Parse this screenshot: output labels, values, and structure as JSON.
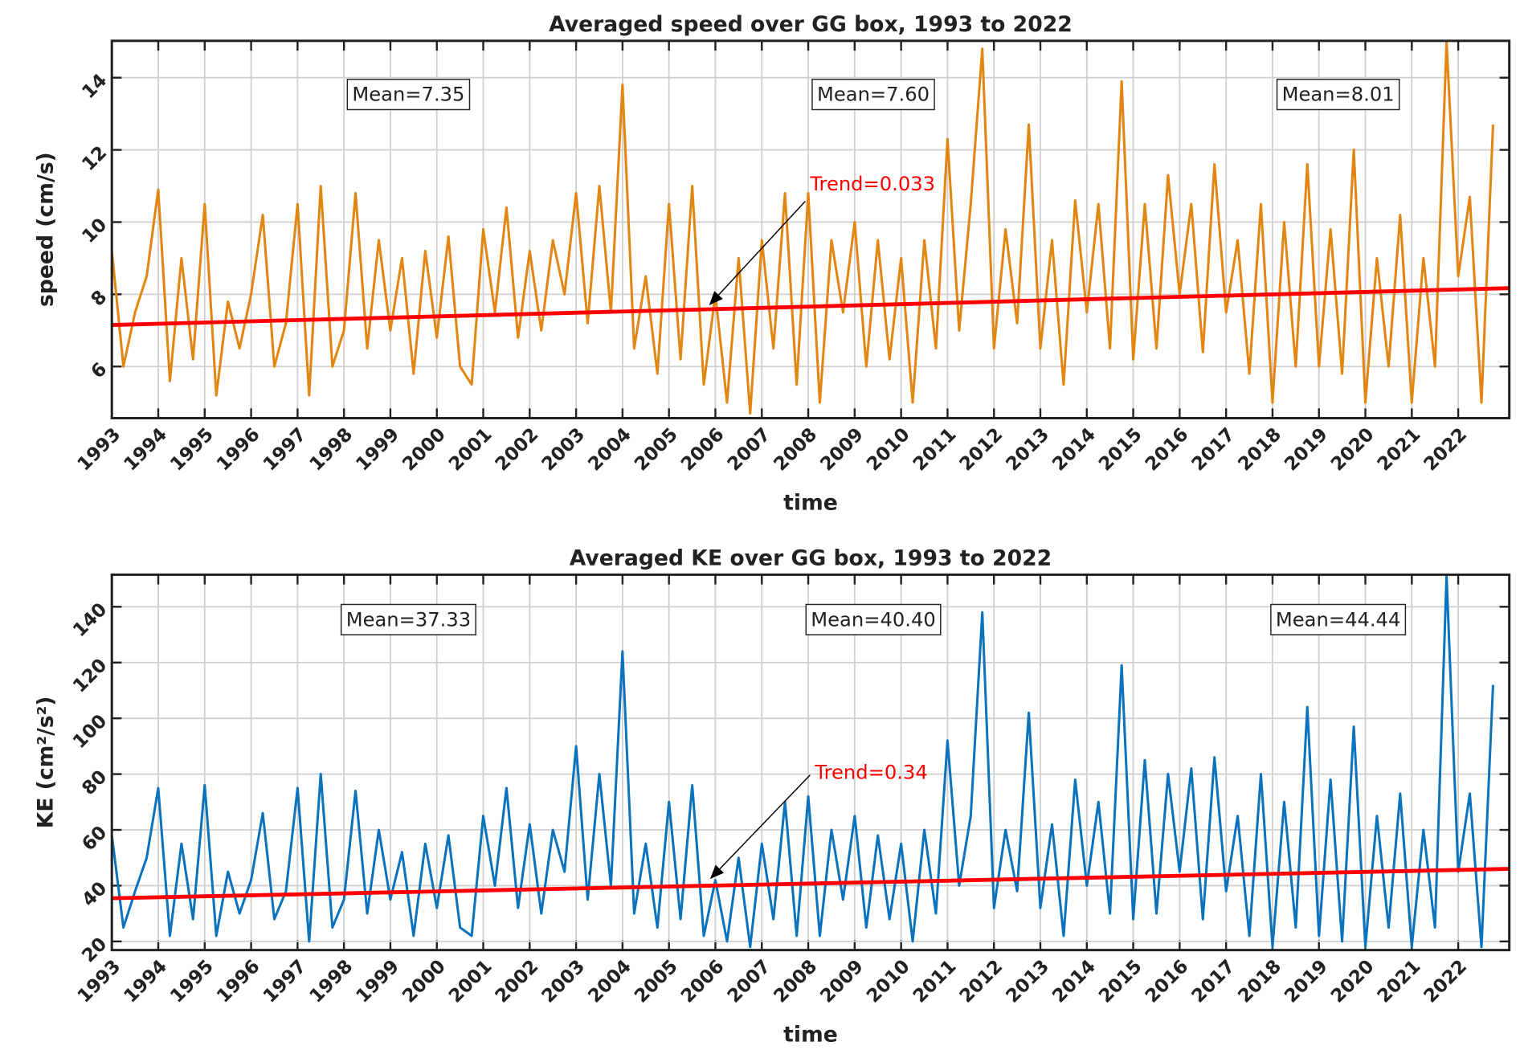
{
  "chart_data": [
    {
      "type": "line",
      "title": "Averaged speed over GG box, 1993 to 2022",
      "xlabel": "time",
      "ylabel": "speed (cm/s)",
      "x": [
        1993,
        1993.25,
        1993.5,
        1993.75,
        1994,
        1994.25,
        1994.5,
        1994.75,
        1995,
        1995.25,
        1995.5,
        1995.75,
        1996,
        1996.25,
        1996.5,
        1996.75,
        1997,
        1997.25,
        1997.5,
        1997.75,
        1998,
        1998.25,
        1998.5,
        1998.75,
        1999,
        1999.25,
        1999.5,
        1999.75,
        2000,
        2000.25,
        2000.5,
        2000.75,
        2001,
        2001.25,
        2001.5,
        2001.75,
        2002,
        2002.25,
        2002.5,
        2002.75,
        2003,
        2003.25,
        2003.5,
        2003.75,
        2004,
        2004.25,
        2004.5,
        2004.75,
        2005,
        2005.25,
        2005.5,
        2005.75,
        2006,
        2006.25,
        2006.5,
        2006.75,
        2007,
        2007.25,
        2007.5,
        2007.75,
        2008,
        2008.25,
        2008.5,
        2008.75,
        2009,
        2009.25,
        2009.5,
        2009.75,
        2010,
        2010.25,
        2010.5,
        2010.75,
        2011,
        2011.25,
        2011.5,
        2011.75,
        2012,
        2012.25,
        2012.5,
        2012.75,
        2013,
        2013.25,
        2013.5,
        2013.75,
        2014,
        2014.25,
        2014.5,
        2014.75,
        2015,
        2015.25,
        2015.5,
        2015.75,
        2016,
        2016.25,
        2016.5,
        2016.75,
        2017,
        2017.25,
        2017.5,
        2017.75,
        2018,
        2018.25,
        2018.5,
        2018.75,
        2019,
        2019.25,
        2019.5,
        2019.75,
        2020,
        2020.25,
        2020.5,
        2020.75,
        2021,
        2021.25,
        2021.5,
        2021.75,
        2022,
        2022.25,
        2022.5,
        2022.75
      ],
      "values": [
        9.2,
        6.0,
        7.5,
        8.5,
        10.9,
        5.6,
        9.0,
        6.2,
        10.5,
        5.2,
        7.8,
        6.5,
        8.0,
        10.2,
        6.0,
        7.2,
        10.5,
        5.2,
        11.0,
        6.0,
        7.0,
        10.8,
        6.5,
        9.5,
        7.0,
        9.0,
        5.8,
        9.2,
        6.8,
        9.6,
        6.0,
        5.5,
        9.8,
        7.5,
        10.4,
        6.8,
        9.2,
        7.0,
        9.5,
        8.0,
        10.8,
        7.2,
        11.0,
        7.5,
        13.8,
        6.5,
        8.5,
        5.8,
        10.5,
        6.2,
        11.0,
        5.5,
        8.0,
        5.0,
        9.0,
        4.7,
        9.5,
        6.5,
        10.8,
        5.5,
        10.8,
        5.0,
        9.5,
        7.5,
        10.0,
        6.0,
        9.5,
        6.2,
        9.0,
        5.0,
        9.5,
        6.5,
        12.3,
        7.0,
        10.5,
        14.8,
        6.5,
        9.8,
        7.2,
        12.7,
        6.5,
        9.5,
        5.5,
        10.6,
        7.5,
        10.5,
        6.5,
        13.9,
        6.2,
        10.5,
        6.5,
        11.3,
        8.0,
        10.5,
        6.4,
        11.6,
        7.5,
        9.5,
        5.8,
        10.5,
        5.0,
        10.0,
        6.0,
        11.6,
        6.0,
        9.8,
        5.8,
        12.0,
        5.0,
        9.0,
        6.0,
        10.2,
        5.0,
        9.0,
        6.0,
        15.0,
        8.5,
        10.7,
        5.0,
        12.7
      ],
      "color": "#e38511",
      "trend": {
        "x": [
          1993,
          2023.1
        ],
        "values": [
          7.15,
          8.17
        ],
        "color": "#ff0000"
      },
      "annotations": [
        "Mean=7.35",
        "Mean=7.60",
        "Mean=8.01",
        "Trend=0.033"
      ],
      "xlim": [
        1993,
        2023.1
      ],
      "ylim": [
        4.57,
        15.02
      ],
      "xticks": [
        1993,
        1994,
        1995,
        1996,
        1997,
        1998,
        1999,
        2000,
        2001,
        2002,
        2003,
        2004,
        2005,
        2006,
        2007,
        2008,
        2009,
        2010,
        2011,
        2012,
        2013,
        2014,
        2015,
        2016,
        2017,
        2018,
        2019,
        2020,
        2021,
        2022
      ],
      "yticks": [
        6,
        8,
        10,
        12,
        14
      ],
      "grid": true
    },
    {
      "type": "line",
      "title": "Averaged KE over GG box, 1993 to 2022",
      "xlabel": "time",
      "ylabel": "KE (cm²/s²)",
      "x": [
        1993,
        1993.25,
        1993.5,
        1993.75,
        1994,
        1994.25,
        1994.5,
        1994.75,
        1995,
        1995.25,
        1995.5,
        1995.75,
        1996,
        1996.25,
        1996.5,
        1996.75,
        1997,
        1997.25,
        1997.5,
        1997.75,
        1998,
        1998.25,
        1998.5,
        1998.75,
        1999,
        1999.25,
        1999.5,
        1999.75,
        2000,
        2000.25,
        2000.5,
        2000.75,
        2001,
        2001.25,
        2001.5,
        2001.75,
        2002,
        2002.25,
        2002.5,
        2002.75,
        2003,
        2003.25,
        2003.5,
        2003.75,
        2004,
        2004.25,
        2004.5,
        2004.75,
        2005,
        2005.25,
        2005.5,
        2005.75,
        2006,
        2006.25,
        2006.5,
        2006.75,
        2007,
        2007.25,
        2007.5,
        2007.75,
        2008,
        2008.25,
        2008.5,
        2008.75,
        2009,
        2009.25,
        2009.5,
        2009.75,
        2010,
        2010.25,
        2010.5,
        2010.75,
        2011,
        2011.25,
        2011.5,
        2011.75,
        2012,
        2012.25,
        2012.5,
        2012.75,
        2013,
        2013.25,
        2013.5,
        2013.75,
        2014,
        2014.25,
        2014.5,
        2014.75,
        2015,
        2015.25,
        2015.5,
        2015.75,
        2016,
        2016.25,
        2016.5,
        2016.75,
        2017,
        2017.25,
        2017.5,
        2017.75,
        2018,
        2018.25,
        2018.5,
        2018.75,
        2019,
        2019.25,
        2019.5,
        2019.75,
        2020,
        2020.25,
        2020.5,
        2020.75,
        2021,
        2021.25,
        2021.5,
        2021.75,
        2022,
        2022.25,
        2022.5,
        2022.75
      ],
      "values": [
        58,
        25,
        38,
        50,
        75,
        22,
        55,
        28,
        76,
        22,
        45,
        30,
        42,
        66,
        28,
        38,
        75,
        20,
        80,
        25,
        35,
        74,
        30,
        60,
        35,
        52,
        22,
        55,
        32,
        58,
        25,
        22,
        65,
        40,
        75,
        32,
        62,
        30,
        60,
        45,
        90,
        35,
        80,
        40,
        124,
        30,
        55,
        25,
        70,
        28,
        76,
        22,
        42,
        20,
        50,
        18,
        55,
        28,
        70,
        22,
        72,
        22,
        60,
        35,
        65,
        25,
        58,
        28,
        55,
        20,
        60,
        30,
        92,
        40,
        65,
        138,
        32,
        60,
        38,
        102,
        32,
        62,
        22,
        78,
        40,
        70,
        30,
        119,
        28,
        85,
        30,
        80,
        45,
        82,
        28,
        86,
        38,
        65,
        22,
        80,
        18,
        70,
        25,
        104,
        22,
        78,
        20,
        97,
        18,
        65,
        25,
        73,
        18,
        60,
        25,
        151,
        45,
        73,
        18,
        112
      ],
      "color": "#0b72bd",
      "trend": {
        "x": [
          1993,
          2023.1
        ],
        "values": [
          35.5,
          46
        ],
        "color": "#ff0000"
      },
      "annotations": [
        "Mean=37.33",
        "Mean=40.40",
        "Mean=44.44",
        "Trend=0.34"
      ],
      "xlim": [
        1993,
        2023.1
      ],
      "ylim": [
        16.9,
        151.5
      ],
      "xticks": [
        1993,
        1994,
        1995,
        1996,
        1997,
        1998,
        1999,
        2000,
        2001,
        2002,
        2003,
        2004,
        2005,
        2006,
        2007,
        2008,
        2009,
        2010,
        2011,
        2012,
        2013,
        2014,
        2015,
        2016,
        2017,
        2018,
        2019,
        2020,
        2021,
        2022
      ],
      "yticks": [
        20,
        40,
        60,
        80,
        100,
        120,
        140
      ],
      "grid": true
    }
  ]
}
